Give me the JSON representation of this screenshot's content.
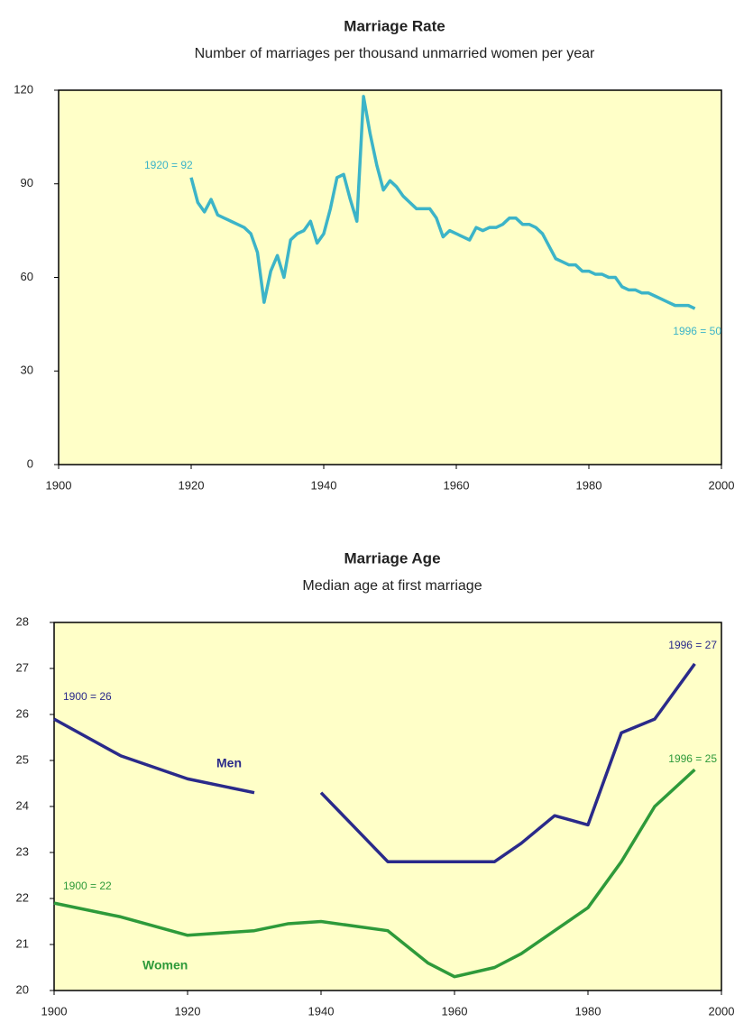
{
  "chart_data": [
    {
      "type": "line",
      "title": "Marriage Rate",
      "subtitle": "Number of marriages per thousand unmarried women per year",
      "x": [
        1920,
        1921,
        1922,
        1923,
        1924,
        1925,
        1926,
        1927,
        1928,
        1929,
        1930,
        1931,
        1932,
        1933,
        1934,
        1935,
        1936,
        1937,
        1938,
        1939,
        1940,
        1941,
        1942,
        1943,
        1944,
        1945,
        1946,
        1947,
        1948,
        1949,
        1950,
        1951,
        1952,
        1953,
        1954,
        1955,
        1956,
        1957,
        1958,
        1959,
        1960,
        1961,
        1962,
        1963,
        1964,
        1965,
        1966,
        1967,
        1968,
        1969,
        1970,
        1971,
        1972,
        1973,
        1974,
        1975,
        1976,
        1977,
        1978,
        1979,
        1980,
        1981,
        1982,
        1983,
        1984,
        1985,
        1986,
        1987,
        1988,
        1989,
        1990,
        1991,
        1992,
        1993,
        1994,
        1995,
        1996
      ],
      "series": [
        {
          "name": "Marriage rate",
          "color": "#3cb4c8",
          "values": [
            92,
            84,
            81,
            85,
            80,
            79,
            78,
            77,
            76,
            74,
            68,
            52,
            62,
            67,
            60,
            72,
            74,
            75,
            78,
            71,
            74,
            82,
            92,
            93,
            85,
            78,
            118,
            106,
            96,
            88,
            91,
            89,
            86,
            84,
            82,
            82,
            82,
            79,
            73,
            75,
            74,
            73,
            72,
            76,
            75,
            76,
            76,
            77,
            79,
            79,
            77,
            77,
            76,
            74,
            70,
            66,
            65,
            64,
            64,
            62,
            62,
            61,
            61,
            60,
            60,
            57,
            56,
            56,
            55,
            55,
            54,
            53,
            52,
            51,
            51,
            51,
            50
          ]
        }
      ],
      "annotations": [
        "1920 = 92",
        "1996 = 50"
      ],
      "xlim": [
        1900,
        2000
      ],
      "xticks": [
        1900,
        1920,
        1940,
        1960,
        1980,
        2000
      ],
      "ylim": [
        0,
        120
      ],
      "yticks": [
        0,
        30,
        60,
        90,
        120
      ],
      "background": "#ffffc8"
    },
    {
      "type": "line",
      "title": "Marriage Age",
      "subtitle": "Median age at first marriage",
      "x": [
        1900,
        1910,
        1920,
        1930,
        1935,
        1940,
        1950,
        1956,
        1960,
        1966,
        1970,
        1975,
        1980,
        1985,
        1990,
        1996
      ],
      "series": [
        {
          "name": "Men",
          "color": "#2a2a8a",
          "values": [
            25.9,
            25.1,
            24.6,
            24.3,
            null,
            24.3,
            22.8,
            22.8,
            22.8,
            22.8,
            23.2,
            23.8,
            23.6,
            25.6,
            25.9,
            27.1
          ]
        },
        {
          "name": "Women",
          "color": "#2e9a3a",
          "values": [
            21.9,
            21.6,
            21.2,
            21.3,
            21.45,
            21.5,
            21.3,
            20.6,
            20.3,
            20.5,
            20.8,
            21.3,
            21.8,
            22.8,
            24,
            24.8
          ]
        }
      ],
      "annotations": [
        "1900 = 26",
        "1996 = 27",
        "1996 = 25",
        "1900 = 22"
      ],
      "xlim": [
        1900,
        2000
      ],
      "xticks": [
        1900,
        1920,
        1940,
        1960,
        1980,
        2000
      ],
      "ylim": [
        20,
        28
      ],
      "yticks": [
        20,
        21,
        22,
        23,
        24,
        25,
        26,
        27,
        28
      ],
      "background": "#ffffc8"
    }
  ]
}
